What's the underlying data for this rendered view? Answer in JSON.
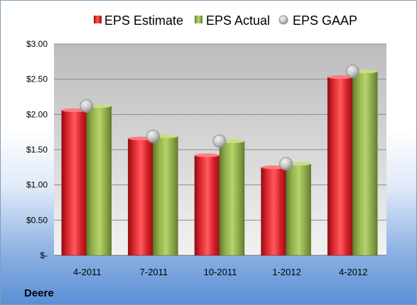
{
  "chart_data": {
    "type": "bar",
    "title": "",
    "xlabel": "",
    "ylabel": "",
    "categories": [
      "4-2011",
      "7-2011",
      "10-2011",
      "1-2012",
      "4-2012"
    ],
    "series": [
      {
        "name": "EPS Estimate",
        "type": "bar",
        "color": "#c4161c",
        "values": [
          2.06,
          1.66,
          1.42,
          1.25,
          2.53
        ]
      },
      {
        "name": "EPS Actual",
        "type": "bar",
        "color": "#7f9a3a",
        "values": [
          2.12,
          1.69,
          1.62,
          1.3,
          2.61
        ]
      },
      {
        "name": "EPS GAAP",
        "type": "scatter",
        "color": "#b8b8b8",
        "values": [
          2.12,
          1.69,
          1.62,
          1.3,
          2.61
        ]
      }
    ],
    "ylim": [
      0,
      3.0
    ],
    "yticks": [
      0,
      0.5,
      1.0,
      1.5,
      2.0,
      2.5,
      3.0
    ],
    "ytick_labels": [
      "$-",
      "$0.50",
      "$1.00",
      "$1.50",
      "$2.00",
      "$2.50",
      "$3.00"
    ],
    "grid": true,
    "legend_position": "top"
  },
  "footer": {
    "company": "Deere"
  }
}
